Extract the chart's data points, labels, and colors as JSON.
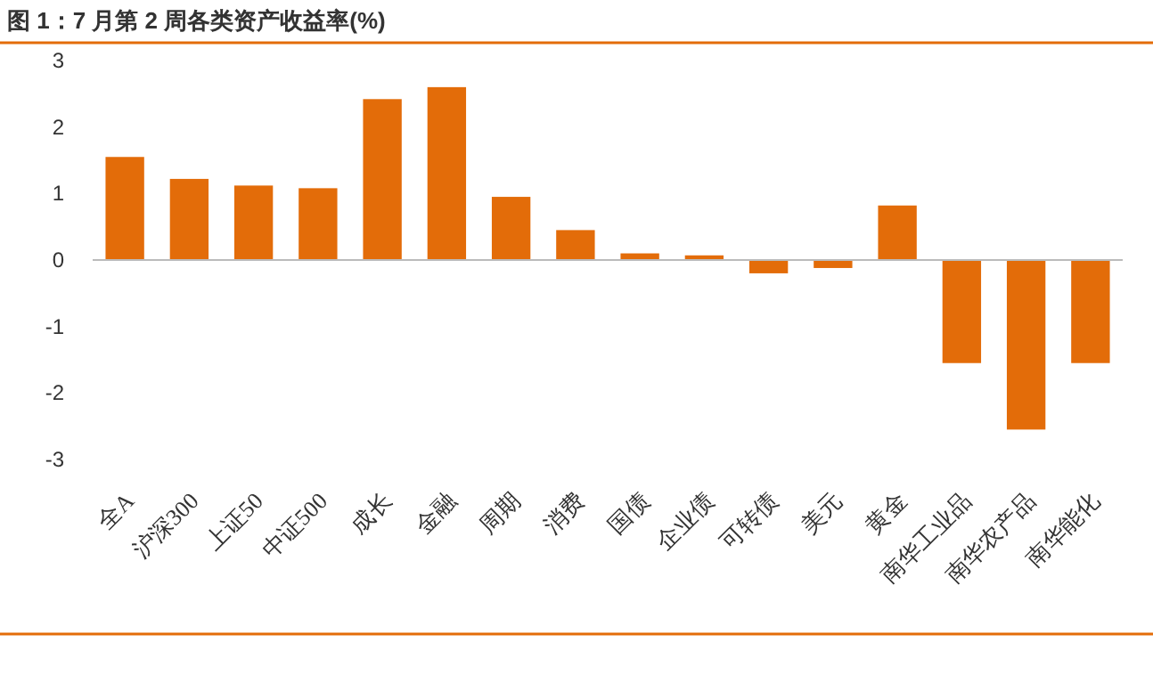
{
  "chart_data": {
    "type": "bar",
    "title": "图 1：7 月第 2 周各类资产收益率(%)",
    "categories": [
      "全A",
      "沪深300",
      "上证50",
      "中证500",
      "成长",
      "金融",
      "周期",
      "消费",
      "国债",
      "企业债",
      "可转债",
      "美元",
      "黄金",
      "南华工业品",
      "南华农产品",
      "南华能化"
    ],
    "values": [
      1.55,
      1.22,
      1.12,
      1.08,
      2.42,
      2.6,
      0.95,
      0.45,
      0.1,
      0.07,
      -0.2,
      -0.12,
      0.82,
      -1.55,
      -2.55,
      -1.55
    ],
    "color": "#e36c09",
    "ylim": [
      -3,
      3
    ],
    "yticks": [
      {
        "value": -3,
        "label": "-3"
      },
      {
        "value": -2,
        "label": "-2"
      },
      {
        "value": -1,
        "label": "-1"
      },
      0,
      1,
      2,
      3
    ]
  }
}
